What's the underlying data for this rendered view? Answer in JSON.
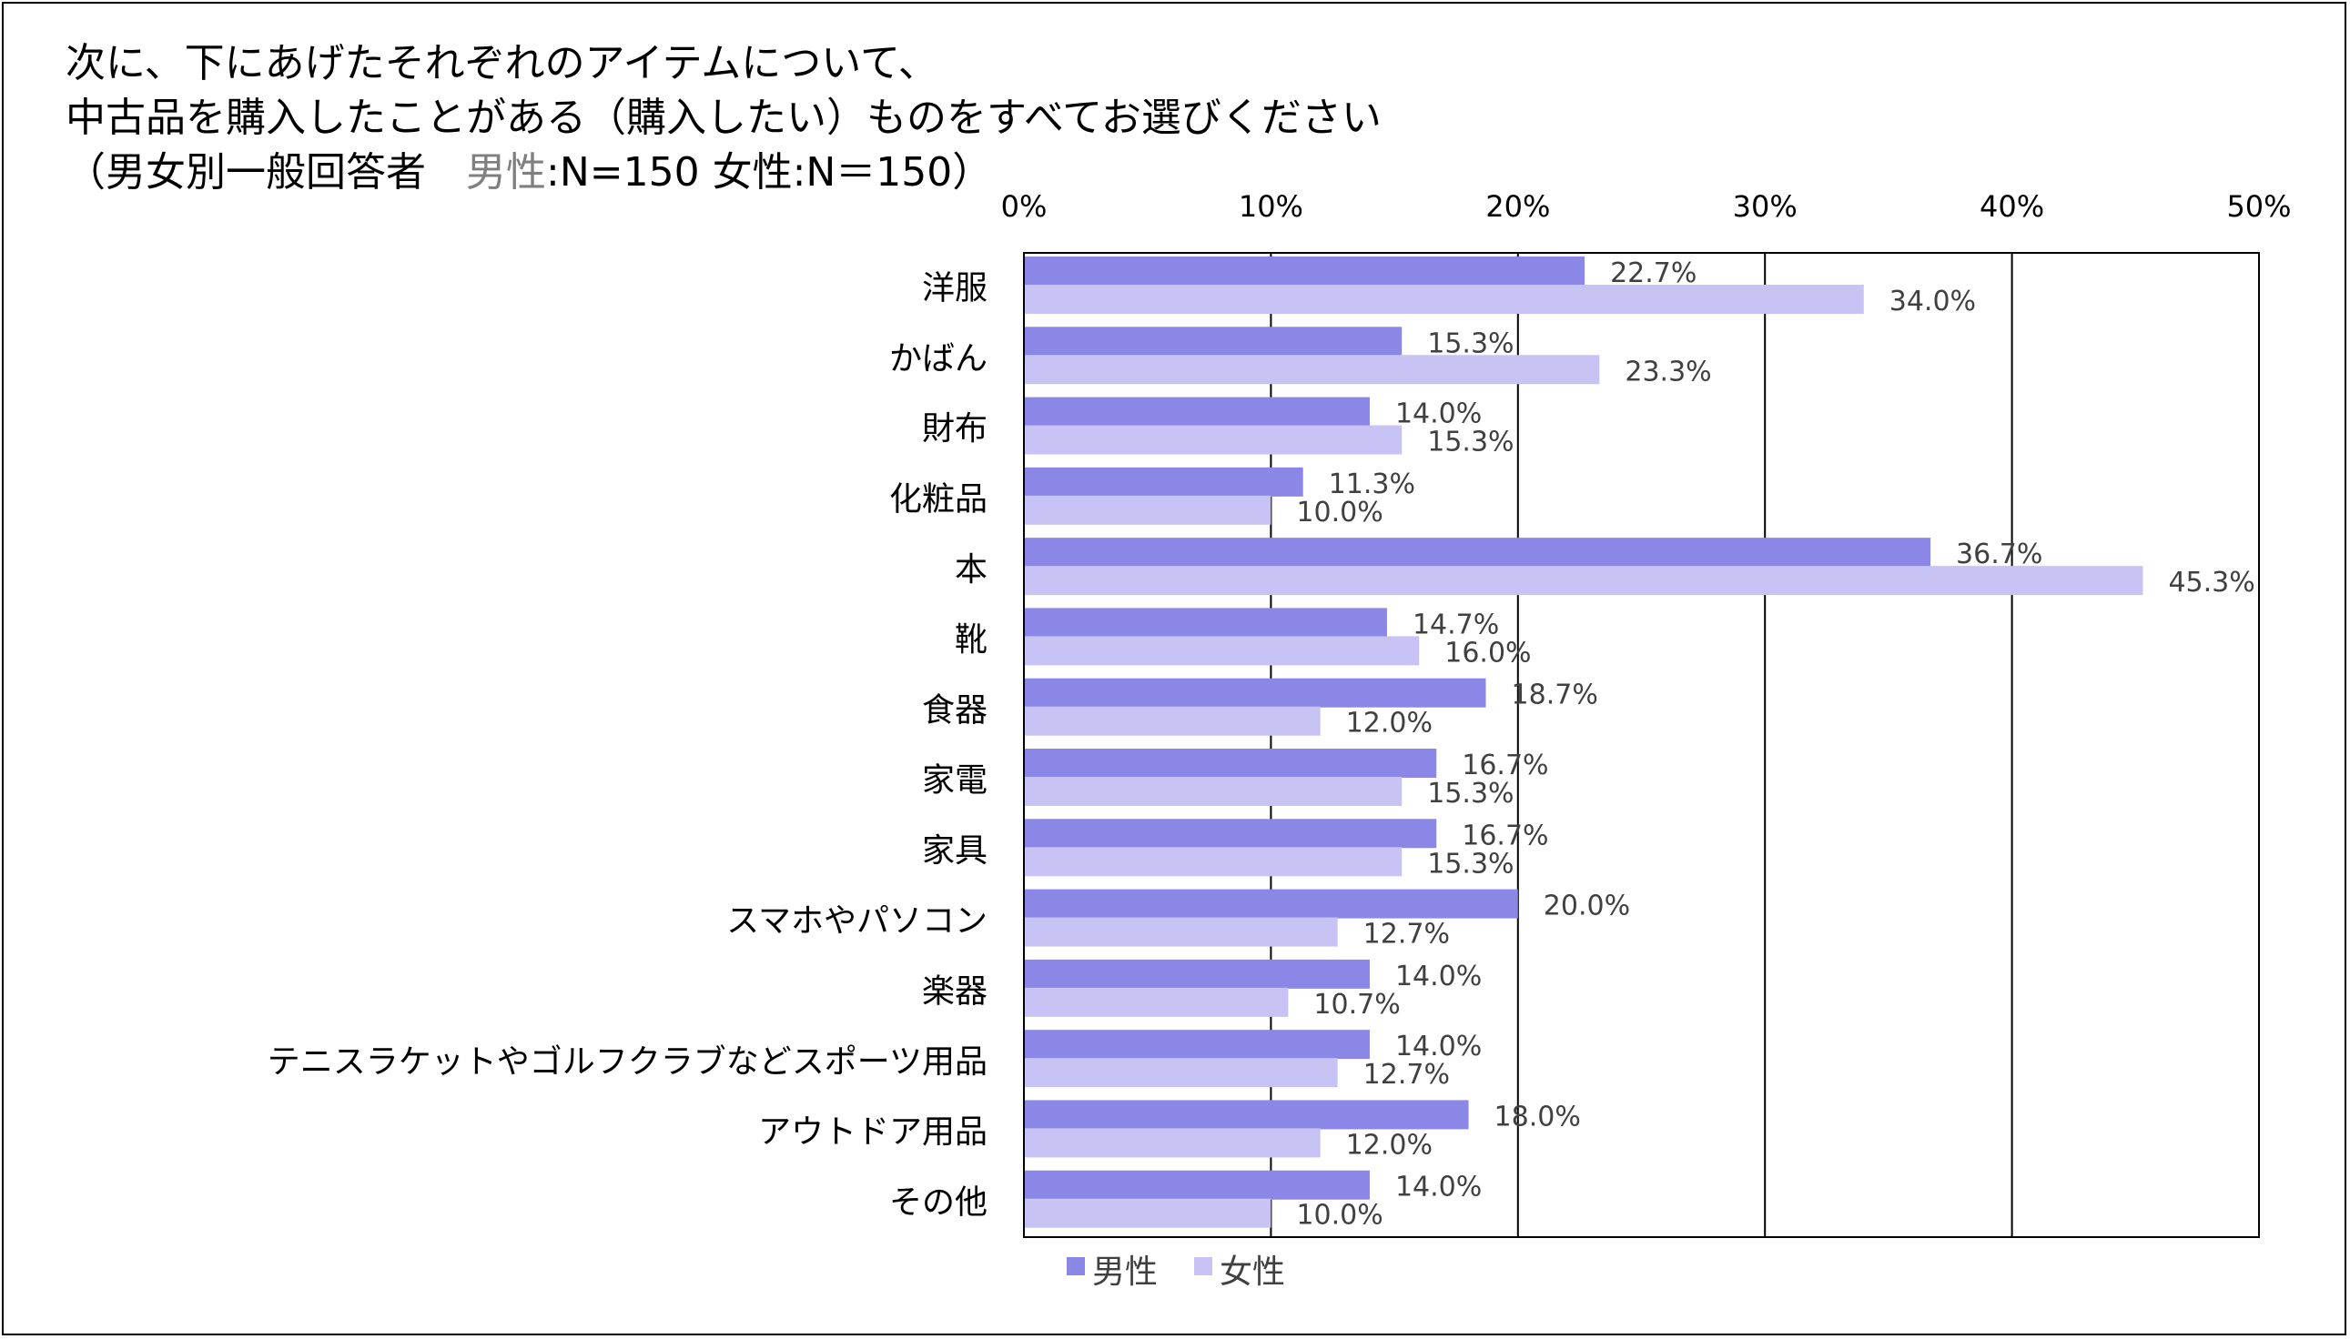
{
  "title": {
    "line1": "次に、下にあげたそれぞれのアイテムについて、",
    "line2": "中古品を購入したことがある（購入したい）ものをすべてお選びください",
    "line3_prefix": "（男女別一般回答者　",
    "line3_grey": "男性",
    "line3_rest": ":N=150 女性:N＝150）"
  },
  "chart_data": {
    "type": "bar",
    "orientation": "horizontal",
    "title": "次に、下にあげたそれぞれのアイテムについて、中古品を購入したことがある（購入したい）ものをすべてお選びください",
    "xlabel": "",
    "ylabel": "",
    "xlim": [
      0,
      50
    ],
    "x_ticks": [
      "0%",
      "10%",
      "20%",
      "30%",
      "40%",
      "50%"
    ],
    "x_tick_values": [
      0,
      10,
      20,
      30,
      40,
      50
    ],
    "grid": true,
    "legend_position": "bottom",
    "categories": [
      "洋服",
      "かばん",
      "財布",
      "化粧品",
      "本",
      "靴",
      "食器",
      "家電",
      "家具",
      "スマホやパソコン",
      "楽器",
      "テニスラケットやゴルフクラブなどスポーツ用品",
      "アウトドア用品",
      "その他"
    ],
    "series": [
      {
        "name": "男性",
        "color": "#8b87e6",
        "values": [
          22.7,
          15.3,
          14.0,
          11.3,
          36.7,
          14.7,
          18.7,
          16.7,
          16.7,
          20.0,
          14.0,
          14.0,
          18.0,
          14.0
        ],
        "labels": [
          "22.7%",
          "15.3%",
          "14.0%",
          "11.3%",
          "36.7%",
          "14.7%",
          "18.7%",
          "16.7%",
          "16.7%",
          "20.0%",
          "14.0%",
          "14.0%",
          "18.0%",
          "14.0%"
        ]
      },
      {
        "name": "女性",
        "color": "#c7c4f5",
        "values": [
          34.0,
          23.3,
          15.3,
          10.0,
          45.3,
          16.0,
          12.0,
          15.3,
          15.3,
          12.7,
          10.7,
          12.7,
          12.0,
          10.0
        ],
        "labels": [
          "34.0%",
          "23.3%",
          "15.3%",
          "10.0%",
          "45.3%",
          "16.0%",
          "12.0%",
          "15.3%",
          "15.3%",
          "12.7%",
          "10.7%",
          "12.7%",
          "12.0%",
          "10.0%"
        ]
      }
    ]
  }
}
